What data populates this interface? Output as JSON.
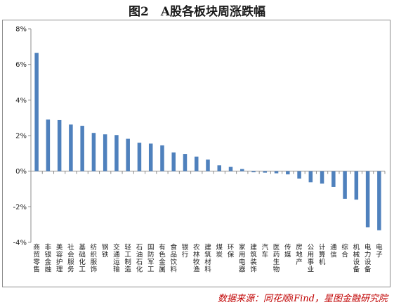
{
  "title": "图2　A股各板块周涨跌幅",
  "source": "数据来源：同花顺iFind，星图金融研究院",
  "colors": {
    "bar": "#4f81bd",
    "axis": "#8c8c8c",
    "title": "#1a1a1a",
    "source": "#c00000"
  },
  "chart_data": {
    "type": "bar",
    "title": "图2　A股各板块周涨跌幅",
    "ylim": [
      -4,
      8
    ],
    "yticks": [
      "-4%",
      "-2%",
      "0%",
      "2%",
      "4%",
      "6%",
      "8%"
    ],
    "ytick_values": [
      -4,
      -2,
      0,
      2,
      4,
      6,
      8
    ],
    "grid": false,
    "legend": "none",
    "categories": [
      "商贸零售",
      "非银金融",
      "美容护理",
      "社会服务",
      "基础化工",
      "纺织服饰",
      "钢铁",
      "交通运输",
      "轻工制造",
      "石油石化",
      "国防军工",
      "有色金属",
      "食品饮料",
      "银行",
      "农林牧渔",
      "建筑材料",
      "煤炭",
      "环保",
      "家用电器",
      "建筑装饰",
      "汽车",
      "医药生物",
      "传媒",
      "房地产",
      "公用事业",
      "计算机",
      "通信",
      "综合",
      "机械设备",
      "电力设备",
      "电子"
    ],
    "values": [
      6.65,
      2.9,
      2.87,
      2.62,
      2.55,
      2.15,
      2.07,
      2.03,
      1.82,
      1.6,
      1.55,
      1.45,
      1.05,
      0.97,
      0.82,
      0.65,
      0.33,
      0.24,
      0.12,
      -0.06,
      -0.08,
      -0.12,
      -0.18,
      -0.42,
      -0.62,
      -0.7,
      -0.88,
      -1.55,
      -1.6,
      -3.15,
      -3.32
    ]
  }
}
